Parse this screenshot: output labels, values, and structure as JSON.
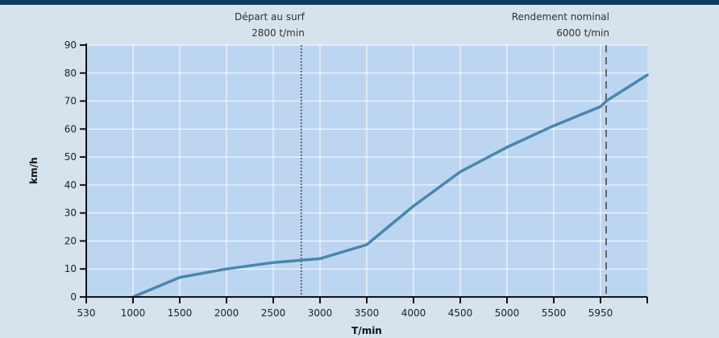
{
  "chart_data": {
    "type": "line",
    "xlabel": "T/min",
    "ylabel": "km/h",
    "x_tick_labels": [
      "530",
      "1000",
      "1500",
      "2000",
      "2500",
      "3000",
      "3500",
      "4000",
      "4500",
      "5000",
      "5500",
      "5950"
    ],
    "y_ticks": [
      0,
      10,
      20,
      30,
      40,
      50,
      60,
      70,
      80,
      90
    ],
    "xlim": [
      530,
      6250
    ],
    "ylim": [
      0,
      90
    ],
    "grid": true,
    "series": [
      {
        "x": [
          1000,
          1500,
          2000,
          2500,
          3000,
          3500,
          4000,
          4500,
          5000,
          5500,
          5950,
          6000,
          6250
        ],
        "y": [
          0,
          7,
          10,
          12.3,
          13.7,
          18.7,
          32.5,
          44.7,
          53.5,
          61.2,
          68,
          70,
          79.3
        ]
      }
    ],
    "annotations": [
      {
        "x": 2800,
        "line": "dotted",
        "label_line1": "Départ au surf",
        "label_line2": "2800 t/min"
      },
      {
        "x": 6000,
        "line": "dashed",
        "label_line1": "Rendement nominal",
        "label_line2": "6000 t/min"
      }
    ],
    "colors": {
      "background": "#d6e2ec",
      "plot_area": "#bcd5f1",
      "grid": "#ffffff",
      "line": "#4a86ad",
      "axis": "#111111",
      "annotation": "#666666",
      "top_bar": "#0e3c5e"
    }
  }
}
